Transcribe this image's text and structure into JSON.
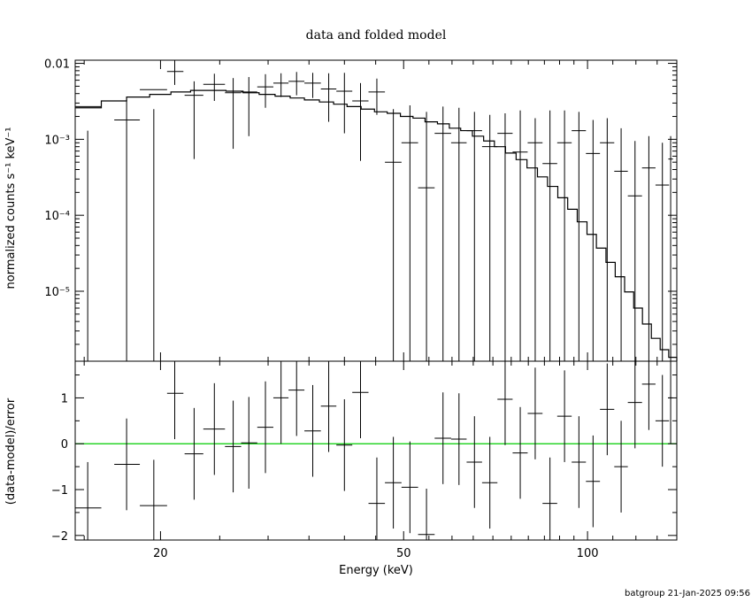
{
  "chart_data": [
    {
      "type": "step-errorbar",
      "panel": "top",
      "title": "data and folded model",
      "ylabel": "normalized counts s⁻¹ keV⁻¹",
      "xscale": "log",
      "yscale": "log",
      "xlim": [
        14.5,
        140
      ],
      "ylim": [
        1.2e-06,
        0.011
      ],
      "y_tick_labels": [
        "0.01",
        "10⁻³",
        "10⁻⁴",
        "10⁻⁵"
      ],
      "y_ticks_major": [
        0.01,
        0.001,
        0.0001,
        1e-05
      ],
      "data": [
        {
          "x": 15.2,
          "xlo": 14.5,
          "xhi": 16.0,
          "y": 0.0027,
          "ylo": 1.2e-06,
          "yhi": 0.0013
        },
        {
          "x": 17.6,
          "xlo": 16.8,
          "xhi": 18.5,
          "y": 0.0018,
          "ylo": 1.2e-06,
          "yhi": 0.0033
        },
        {
          "x": 19.5,
          "xlo": 18.5,
          "xhi": 20.5,
          "y": 0.0045,
          "ylo": 1.2e-06,
          "yhi": 0.0025
        },
        {
          "x": 21.1,
          "xlo": 20.5,
          "xhi": 21.8,
          "y": 0.0078,
          "ylo": 0.0052,
          "yhi": 0.011
        },
        {
          "x": 22.7,
          "xlo": 21.9,
          "xhi": 23.5,
          "y": 0.0038,
          "ylo": 0.00055,
          "yhi": 0.0058
        },
        {
          "x": 24.5,
          "xlo": 23.5,
          "xhi": 25.5,
          "y": 0.0053,
          "ylo": 0.0032,
          "yhi": 0.0073
        },
        {
          "x": 26.3,
          "xlo": 25.5,
          "xhi": 27.1,
          "y": 0.0041,
          "ylo": 0.00075,
          "yhi": 0.0064
        },
        {
          "x": 27.9,
          "xlo": 27.1,
          "xhi": 28.8,
          "y": 0.0042,
          "ylo": 0.0011,
          "yhi": 0.0066
        },
        {
          "x": 29.7,
          "xlo": 28.8,
          "xhi": 30.6,
          "y": 0.0049,
          "ylo": 0.0026,
          "yhi": 0.0072
        },
        {
          "x": 31.5,
          "xlo": 30.6,
          "xhi": 32.4,
          "y": 0.0055,
          "ylo": 0.0036,
          "yhi": 0.0074
        },
        {
          "x": 33.4,
          "xlo": 32.4,
          "xhi": 34.4,
          "y": 0.0058,
          "ylo": 0.0038,
          "yhi": 0.0077
        },
        {
          "x": 35.5,
          "xlo": 34.4,
          "xhi": 36.6,
          "y": 0.0055,
          "ylo": 0.0035,
          "yhi": 0.0075
        },
        {
          "x": 37.7,
          "xlo": 36.6,
          "xhi": 38.8,
          "y": 0.0046,
          "ylo": 0.0017,
          "yhi": 0.0074
        },
        {
          "x": 40.0,
          "xlo": 38.8,
          "xhi": 41.2,
          "y": 0.0043,
          "ylo": 0.0012,
          "yhi": 0.0075
        },
        {
          "x": 42.5,
          "xlo": 41.2,
          "xhi": 43.8,
          "y": 0.0032,
          "ylo": 0.00052,
          "yhi": 0.0055
        },
        {
          "x": 45.2,
          "xlo": 43.8,
          "xhi": 46.6,
          "y": 0.0042,
          "ylo": 0.0021,
          "yhi": 0.0063
        },
        {
          "x": 48.1,
          "xlo": 46.6,
          "xhi": 49.6,
          "y": 0.0005,
          "ylo": 1.2e-06,
          "yhi": 0.0025
        },
        {
          "x": 51.2,
          "xlo": 49.6,
          "xhi": 52.8,
          "y": 0.0009,
          "ylo": 1.2e-06,
          "yhi": 0.0028
        },
        {
          "x": 54.5,
          "xlo": 52.8,
          "xhi": 56.2,
          "y": 0.00023,
          "ylo": 1.2e-06,
          "yhi": 0.0023
        },
        {
          "x": 58.0,
          "xlo": 56.2,
          "xhi": 59.8,
          "y": 0.0012,
          "ylo": 1.2e-06,
          "yhi": 0.0027
        },
        {
          "x": 61.6,
          "xlo": 59.8,
          "xhi": 63.4,
          "y": 0.0009,
          "ylo": 1.2e-06,
          "yhi": 0.0026
        },
        {
          "x": 65.3,
          "xlo": 63.4,
          "xhi": 67.2,
          "y": 0.0013,
          "ylo": 1.2e-06,
          "yhi": 0.0023
        },
        {
          "x": 69.2,
          "xlo": 67.2,
          "xhi": 71.2,
          "y": 0.0008,
          "ylo": 1.2e-06,
          "yhi": 0.0021
        },
        {
          "x": 73.3,
          "xlo": 71.2,
          "xhi": 75.4,
          "y": 0.0012,
          "ylo": 1.2e-06,
          "yhi": 0.0022
        },
        {
          "x": 77.6,
          "xlo": 75.4,
          "xhi": 79.8,
          "y": 0.00068,
          "ylo": 1.2e-06,
          "yhi": 0.0024
        },
        {
          "x": 82.1,
          "xlo": 79.8,
          "xhi": 84.4,
          "y": 0.0009,
          "ylo": 1.2e-06,
          "yhi": 0.0019
        },
        {
          "x": 86.8,
          "xlo": 84.4,
          "xhi": 89.2,
          "y": 0.00048,
          "ylo": 1.2e-06,
          "yhi": 0.0024
        },
        {
          "x": 91.7,
          "xlo": 89.2,
          "xhi": 94.2,
          "y": 0.0009,
          "ylo": 1.2e-06,
          "yhi": 0.0024
        },
        {
          "x": 96.8,
          "xlo": 94.2,
          "xhi": 99.4,
          "y": 0.0013,
          "ylo": 1.2e-06,
          "yhi": 0.0023
        },
        {
          "x": 102.1,
          "xlo": 99.4,
          "xhi": 104.8,
          "y": 0.00065,
          "ylo": 1.2e-06,
          "yhi": 0.0018
        },
        {
          "x": 107.7,
          "xlo": 104.8,
          "xhi": 110.6,
          "y": 0.0009,
          "ylo": 1.2e-06,
          "yhi": 0.0019
        },
        {
          "x": 113.5,
          "xlo": 110.6,
          "xhi": 116.4,
          "y": 0.00038,
          "ylo": 1.2e-06,
          "yhi": 0.0014
        },
        {
          "x": 119.6,
          "xlo": 116.4,
          "xhi": 122.8,
          "y": 0.00018,
          "ylo": 1.2e-06,
          "yhi": 0.00095
        },
        {
          "x": 126.0,
          "xlo": 122.8,
          "xhi": 129.2,
          "y": 0.00042,
          "ylo": 1.2e-06,
          "yhi": 0.0011
        },
        {
          "x": 132.6,
          "xlo": 129.2,
          "xhi": 136.0,
          "y": 0.00025,
          "ylo": 1.2e-06,
          "yhi": 0.0009
        },
        {
          "x": 136.8,
          "xlo": 135.6,
          "xhi": 138.0,
          "y": 0.00055,
          "ylo": 1.2e-06,
          "yhi": 0.0011
        }
      ],
      "model": [
        [
          14.5,
          0.0026
        ],
        [
          16.0,
          0.0032
        ],
        [
          17.6,
          0.0036
        ],
        [
          19.2,
          0.0039
        ],
        [
          20.8,
          0.0042
        ],
        [
          22.4,
          0.0044
        ],
        [
          24.0,
          0.0044
        ],
        [
          25.6,
          0.0043
        ],
        [
          27.3,
          0.0041
        ],
        [
          29.0,
          0.0039
        ],
        [
          30.8,
          0.0037
        ],
        [
          32.6,
          0.0035
        ],
        [
          34.4,
          0.0033
        ],
        [
          36.4,
          0.0031
        ],
        [
          38.4,
          0.0029
        ],
        [
          40.4,
          0.0027
        ],
        [
          42.6,
          0.0025
        ],
        [
          44.8,
          0.0023
        ],
        [
          47.0,
          0.0022
        ],
        [
          49.4,
          0.002
        ],
        [
          51.8,
          0.0019
        ],
        [
          54.2,
          0.0017
        ],
        [
          56.8,
          0.0016
        ],
        [
          59.4,
          0.0014
        ],
        [
          62.0,
          0.0013
        ],
        [
          64.8,
          0.0011
        ],
        [
          67.6,
          0.00095
        ],
        [
          70.4,
          0.0008
        ],
        [
          73.4,
          0.00066
        ],
        [
          76.4,
          0.00054
        ],
        [
          79.6,
          0.00042
        ],
        [
          82.8,
          0.00032
        ],
        [
          86.0,
          0.00024
        ],
        [
          89.4,
          0.00017
        ],
        [
          92.8,
          0.00012
        ],
        [
          96.2,
          8.2e-05
        ],
        [
          99.8,
          5.6e-05
        ],
        [
          103.4,
          3.7e-05
        ],
        [
          107.2,
          2.4e-05
        ],
        [
          111.0,
          1.55e-05
        ],
        [
          115.0,
          9.8e-06
        ],
        [
          119.0,
          6e-06
        ],
        [
          123.0,
          3.7e-06
        ],
        [
          127.2,
          2.4e-06
        ],
        [
          131.5,
          1.7e-06
        ],
        [
          135.8,
          1.35e-06
        ],
        [
          140.0,
          1.2e-06
        ]
      ]
    },
    {
      "type": "errorbar",
      "panel": "bottom",
      "xlabel": "Energy (keV)",
      "ylabel": "(data-model)/error",
      "xscale": "log",
      "xlim": [
        14.5,
        140
      ],
      "ylim": [
        -2.1,
        1.8
      ],
      "x_ticks_major": [
        20,
        50,
        100
      ],
      "x_tick_labels": [
        "20",
        "50",
        "100"
      ],
      "y_ticks_major": [
        1,
        0,
        -1,
        -2
      ],
      "y_tick_labels": [
        "1",
        "0",
        "−1",
        "−2"
      ],
      "reference_line": {
        "y": 0,
        "color": "#00cc00"
      },
      "data": [
        {
          "x": 15.2,
          "xlo": 14.5,
          "xhi": 16.0,
          "y": -1.4,
          "err": 1.0
        },
        {
          "x": 17.6,
          "xlo": 16.8,
          "xhi": 18.5,
          "y": -0.45,
          "err": 1.0
        },
        {
          "x": 19.5,
          "xlo": 18.5,
          "xhi": 20.5,
          "y": -1.35,
          "err": 1.0
        },
        {
          "x": 21.1,
          "xlo": 20.5,
          "xhi": 21.8,
          "y": 1.1,
          "err": 1.0
        },
        {
          "x": 22.7,
          "xlo": 21.9,
          "xhi": 23.5,
          "y": -0.22,
          "err": 1.0
        },
        {
          "x": 24.5,
          "xlo": 23.5,
          "xhi": 25.5,
          "y": 0.32,
          "err": 1.0
        },
        {
          "x": 26.3,
          "xlo": 25.5,
          "xhi": 27.1,
          "y": -0.06,
          "err": 1.0
        },
        {
          "x": 27.9,
          "xlo": 27.1,
          "xhi": 28.8,
          "y": 0.02,
          "err": 1.0
        },
        {
          "x": 29.7,
          "xlo": 28.8,
          "xhi": 30.6,
          "y": 0.36,
          "err": 1.0
        },
        {
          "x": 31.5,
          "xlo": 30.6,
          "xhi": 32.4,
          "y": 1.0,
          "err": 1.0
        },
        {
          "x": 33.4,
          "xlo": 32.4,
          "xhi": 34.4,
          "y": 1.17,
          "err": 1.0
        },
        {
          "x": 35.5,
          "xlo": 34.4,
          "xhi": 36.6,
          "y": 0.28,
          "err": 1.0
        },
        {
          "x": 37.7,
          "xlo": 36.6,
          "xhi": 38.8,
          "y": 0.82,
          "err": 1.0
        },
        {
          "x": 40.0,
          "xlo": 38.8,
          "xhi": 41.2,
          "y": -0.03,
          "err": 1.0
        },
        {
          "x": 42.5,
          "xlo": 41.2,
          "xhi": 43.8,
          "y": 1.12,
          "err": 1.0
        },
        {
          "x": 45.2,
          "xlo": 43.8,
          "xhi": 46.6,
          "y": -1.3,
          "err": 1.0
        },
        {
          "x": 48.1,
          "xlo": 46.6,
          "xhi": 49.6,
          "y": -0.85,
          "err": 1.0
        },
        {
          "x": 51.2,
          "xlo": 49.6,
          "xhi": 52.8,
          "y": -0.95,
          "err": 1.0
        },
        {
          "x": 54.5,
          "xlo": 52.8,
          "xhi": 56.2,
          "y": -1.98,
          "err": 1.0
        },
        {
          "x": 58.0,
          "xlo": 56.2,
          "xhi": 59.8,
          "y": 0.12,
          "err": 1.0
        },
        {
          "x": 61.6,
          "xlo": 59.8,
          "xhi": 63.4,
          "y": 0.1,
          "err": 1.0
        },
        {
          "x": 65.3,
          "xlo": 63.4,
          "xhi": 67.2,
          "y": -0.4,
          "err": 1.0
        },
        {
          "x": 69.2,
          "xlo": 67.2,
          "xhi": 71.2,
          "y": -0.85,
          "err": 1.0
        },
        {
          "x": 73.3,
          "xlo": 71.2,
          "xhi": 75.4,
          "y": 0.97,
          "err": 1.0
        },
        {
          "x": 77.6,
          "xlo": 75.4,
          "xhi": 79.8,
          "y": -0.2,
          "err": 1.0
        },
        {
          "x": 82.1,
          "xlo": 79.8,
          "xhi": 84.4,
          "y": 0.66,
          "err": 1.0
        },
        {
          "x": 86.8,
          "xlo": 84.4,
          "xhi": 89.2,
          "y": -1.3,
          "err": 1.0
        },
        {
          "x": 91.7,
          "xlo": 89.2,
          "xhi": 94.2,
          "y": 0.6,
          "err": 1.0
        },
        {
          "x": 96.8,
          "xlo": 94.2,
          "xhi": 99.4,
          "y": -0.4,
          "err": 1.0
        },
        {
          "x": 102.1,
          "xlo": 99.4,
          "xhi": 104.8,
          "y": -0.82,
          "err": 1.0
        },
        {
          "x": 107.7,
          "xlo": 104.8,
          "xhi": 110.6,
          "y": 0.75,
          "err": 1.0
        },
        {
          "x": 113.5,
          "xlo": 110.6,
          "xhi": 116.4,
          "y": -0.5,
          "err": 1.0
        },
        {
          "x": 119.6,
          "xlo": 116.4,
          "xhi": 122.8,
          "y": 0.9,
          "err": 1.0
        },
        {
          "x": 126.0,
          "xlo": 122.8,
          "xhi": 129.2,
          "y": 1.3,
          "err": 1.0
        },
        {
          "x": 132.6,
          "xlo": 129.2,
          "xhi": 136.0,
          "y": 0.5,
          "err": 1.0
        },
        {
          "x": 136.8,
          "xlo": 135.6,
          "xhi": 138.0,
          "y": 1.0,
          "err": 1.0
        }
      ]
    }
  ],
  "footer": "batgroup 21-Jan-2025 09:56"
}
